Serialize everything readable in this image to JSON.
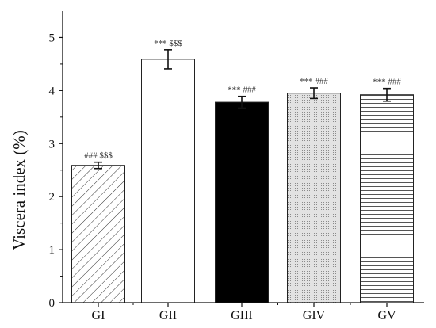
{
  "chart_data": {
    "type": "bar",
    "categories": [
      "GI",
      "GII",
      "GIII",
      "GIV",
      "GV"
    ],
    "values": [
      2.59,
      4.59,
      3.78,
      3.95,
      3.92
    ],
    "errors": [
      0.06,
      0.18,
      0.11,
      0.1,
      0.12
    ],
    "annotations": [
      "###  $$$",
      "***  $$$",
      "***  ###",
      "***  ###",
      "***  ###"
    ],
    "fills": [
      "diagonal-hatch",
      "white",
      "black",
      "dotted-gray",
      "horizontal-lines"
    ],
    "title": "",
    "xlabel": "",
    "ylabel": "Viscera index (%)",
    "ylim": [
      0,
      5.5
    ],
    "yticks": [
      0,
      1,
      2,
      3,
      4,
      5
    ],
    "grid": false,
    "colors": {
      "axis": "#111111",
      "bar_edge": "#222222",
      "solid": "#000000"
    }
  }
}
